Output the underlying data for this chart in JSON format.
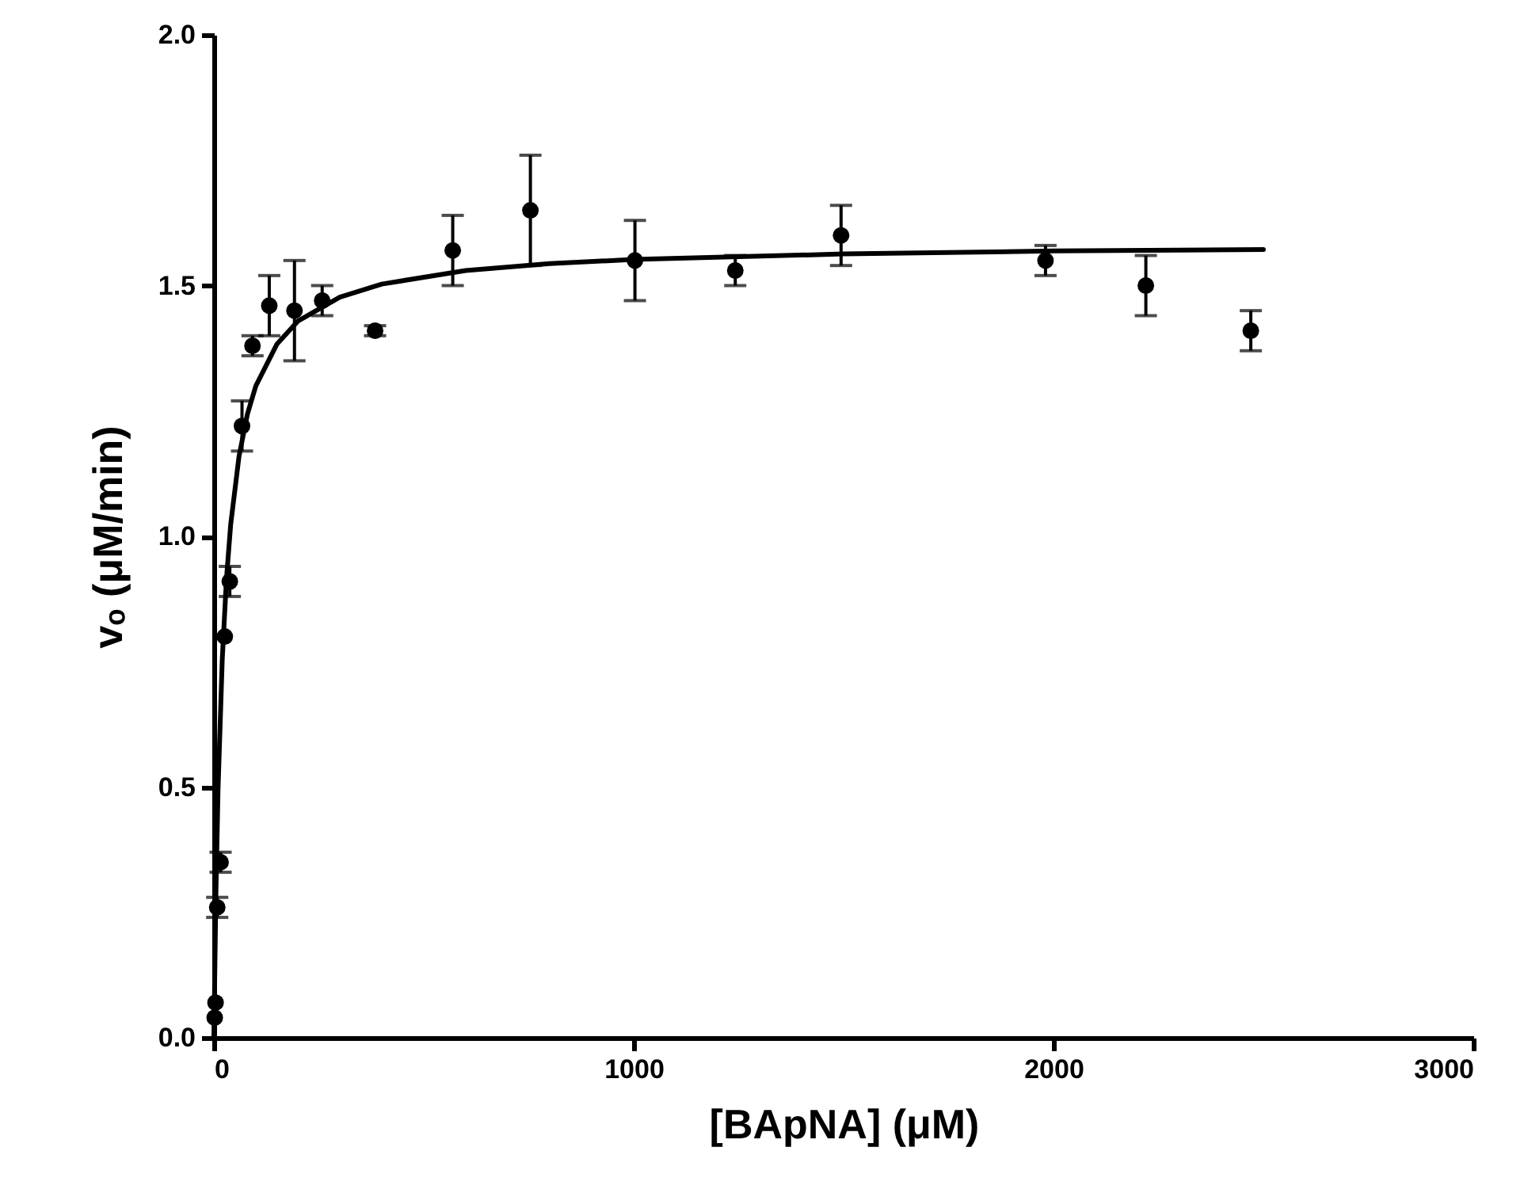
{
  "chart_data": {
    "type": "scatter",
    "xlabel": "[BApNA] (μM)",
    "ylabel": "vₒ (μM/min)",
    "xlim": [
      0,
      3000
    ],
    "xticks": [
      0,
      1000,
      2000,
      3000
    ],
    "ylim": [
      0,
      2
    ],
    "yticks": [
      {
        "value": 0,
        "label": "0.0"
      },
      {
        "value": 0.5,
        "label": "0.5"
      },
      {
        "value": 1,
        "label": "1.0"
      },
      {
        "value": 1.5,
        "label": "1.5"
      },
      {
        "value": 2,
        "label": "2.0"
      }
    ],
    "grid": false,
    "marker": "circle",
    "series": [
      {
        "color": "#000000",
        "x": [
          2,
          4,
          8,
          16,
          26,
          38,
          67,
          92,
          132,
          192,
          258,
          384,
          569,
          754,
          1003,
          1242,
          1494,
          1981,
          2220,
          2470
        ],
        "values": [
          0.04,
          0.07,
          0.26,
          0.35,
          0.8,
          0.91,
          1.22,
          1.38,
          1.46,
          1.45,
          1.47,
          1.41,
          1.57,
          1.65,
          1.55,
          1.53,
          1.6,
          1.55,
          1.5,
          1.41
        ],
        "errors": [
          null,
          null,
          0.02,
          0.02,
          null,
          0.03,
          0.05,
          0.02,
          0.06,
          0.1,
          0.03,
          0.01,
          0.07,
          0.11,
          0.08,
          0.03,
          0.06,
          0.03,
          0.06,
          0.04
        ]
      },
      {
        "type": "line",
        "marker": "none",
        "color": "#000000",
        "line_style": "solid",
        "x": [
          0,
          5,
          10,
          20,
          30,
          40,
          60,
          80,
          100,
          150,
          200,
          300,
          400,
          600,
          800,
          1000,
          1500,
          2000,
          2500
        ],
        "values": [
          0,
          0.294,
          0.496,
          0.755,
          0.915,
          1.023,
          1.16,
          1.244,
          1.3,
          1.383,
          1.429,
          1.477,
          1.503,
          1.53,
          1.544,
          1.552,
          1.563,
          1.569,
          1.572
        ]
      }
    ]
  }
}
